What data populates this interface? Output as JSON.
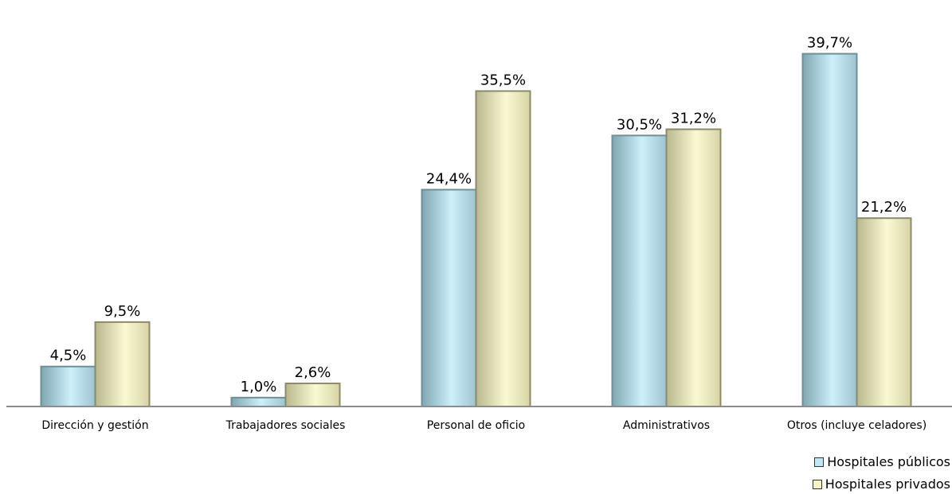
{
  "chart_data": {
    "type": "bar",
    "categories": [
      "Dirección y gestión",
      "Trabajadores sociales",
      "Personal de oficio",
      "Administrativos",
      "Otros (incluye celadores)"
    ],
    "series": [
      {
        "name": "Hospitales públicos",
        "values": [
          4.5,
          1.0,
          24.4,
          30.5,
          39.7
        ],
        "labels": [
          "4,5%",
          "1,0%",
          "24,4%",
          "30,5%",
          "39,7%"
        ],
        "color": "#bfe8f4"
      },
      {
        "name": "Hospitales privados",
        "values": [
          9.5,
          2.6,
          35.5,
          31.2,
          21.2
        ],
        "labels": [
          "9,5%",
          "2,6%",
          "35,5%",
          "31,2%",
          "21,2%"
        ],
        "color": "#f6f4c4"
      }
    ],
    "ylim": [
      0,
      43.6
    ],
    "grid": false,
    "legend_position": "bottom-right"
  }
}
